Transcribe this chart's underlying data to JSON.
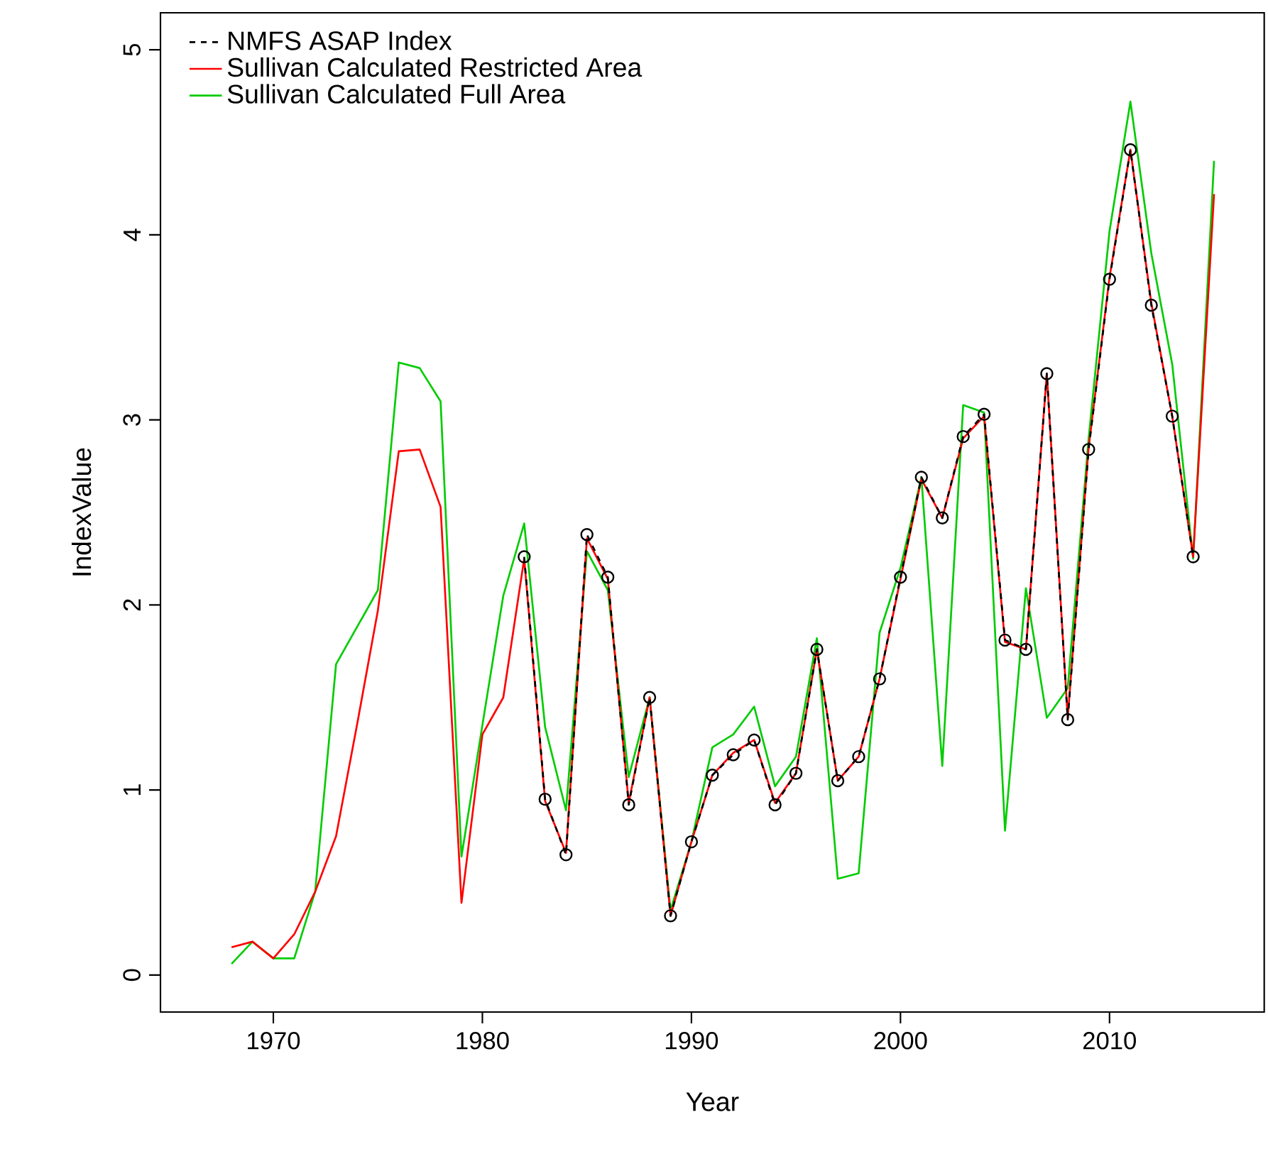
{
  "chart_data": {
    "type": "line",
    "xlabel": "Year",
    "ylabel": "IndexValue",
    "xlim": [
      1964.6,
      2017.4
    ],
    "ylim": [
      -0.2,
      5.2
    ],
    "xticks": [
      1970,
      1980,
      1990,
      2000,
      2010
    ],
    "yticks": [
      0,
      1,
      2,
      3,
      4,
      5
    ],
    "legend": "top left",
    "grid": false,
    "series": [
      {
        "name": "NMFS ASAP Index",
        "color": "#000000",
        "line_style": "dashed",
        "marker": "circle",
        "x": [
          1982,
          1983,
          1984,
          1985,
          1986,
          1987,
          1988,
          1989,
          1990,
          1991,
          1992,
          1993,
          1994,
          1995,
          1996,
          1997,
          1998,
          1999,
          2000,
          2001,
          2002,
          2003,
          2004,
          2005,
          2006,
          2007,
          2008,
          2009,
          2010,
          2011,
          2012,
          2013,
          2014
        ],
        "values": [
          2.26,
          0.95,
          0.65,
          2.38,
          2.15,
          0.92,
          1.5,
          0.32,
          0.72,
          1.08,
          1.19,
          1.27,
          0.92,
          1.09,
          1.76,
          1.05,
          1.18,
          1.6,
          2.15,
          2.69,
          2.47,
          2.91,
          3.03,
          1.81,
          1.76,
          3.25,
          1.38,
          2.84,
          3.76,
          4.46,
          3.62,
          3.02,
          2.26
        ]
      },
      {
        "name": "Sullivan Calculated Restricted Area",
        "color": "#ff0000",
        "line_style": "solid",
        "marker": "none",
        "x": [
          1968,
          1969,
          1970,
          1971,
          1972,
          1973,
          1974,
          1975,
          1976,
          1977,
          1978,
          1979,
          1980,
          1981,
          1982,
          1983,
          1984,
          1985,
          1986,
          1987,
          1988,
          1989,
          1990,
          1991,
          1992,
          1993,
          1994,
          1995,
          1996,
          1997,
          1998,
          1999,
          2000,
          2001,
          2002,
          2003,
          2004,
          2005,
          2006,
          2007,
          2008,
          2009,
          2010,
          2011,
          2012,
          2013,
          2014,
          2015
        ],
        "values": [
          0.15,
          0.18,
          0.09,
          0.22,
          0.45,
          0.75,
          1.35,
          1.97,
          2.83,
          2.84,
          2.53,
          0.39,
          1.3,
          1.5,
          2.25,
          0.94,
          0.66,
          2.36,
          2.14,
          0.93,
          1.5,
          0.32,
          0.72,
          1.08,
          1.2,
          1.27,
          0.93,
          1.09,
          1.76,
          1.05,
          1.18,
          1.6,
          2.14,
          2.68,
          2.47,
          2.9,
          3.02,
          1.8,
          1.76,
          3.25,
          1.39,
          2.85,
          3.77,
          4.46,
          3.63,
          3.02,
          2.26,
          4.22
        ]
      },
      {
        "name": "Sullivan Calculated Full Area",
        "color": "#00cc00",
        "line_style": "solid",
        "marker": "none",
        "x": [
          1968,
          1969,
          1970,
          1971,
          1972,
          1973,
          1974,
          1975,
          1976,
          1977,
          1978,
          1979,
          1980,
          1981,
          1982,
          1983,
          1984,
          1985,
          1986,
          1987,
          1988,
          1989,
          1990,
          1991,
          1992,
          1993,
          1994,
          1995,
          1996,
          1997,
          1998,
          1999,
          2000,
          2001,
          2002,
          2003,
          2004,
          2005,
          2006,
          2007,
          2008,
          2009,
          2010,
          2011,
          2012,
          2013,
          2014,
          2015
        ],
        "values": [
          0.06,
          0.18,
          0.09,
          0.09,
          0.45,
          1.68,
          1.88,
          2.08,
          3.31,
          3.28,
          3.1,
          0.64,
          1.35,
          2.05,
          2.44,
          1.34,
          0.89,
          2.29,
          2.08,
          1.07,
          1.5,
          0.35,
          0.72,
          1.23,
          1.3,
          1.45,
          1.02,
          1.18,
          1.82,
          0.52,
          0.55,
          1.85,
          2.2,
          2.69,
          1.13,
          3.08,
          3.04,
          0.78,
          2.09,
          1.39,
          1.55,
          2.9,
          4.02,
          4.72,
          3.9,
          3.3,
          2.25,
          4.4
        ]
      }
    ]
  }
}
